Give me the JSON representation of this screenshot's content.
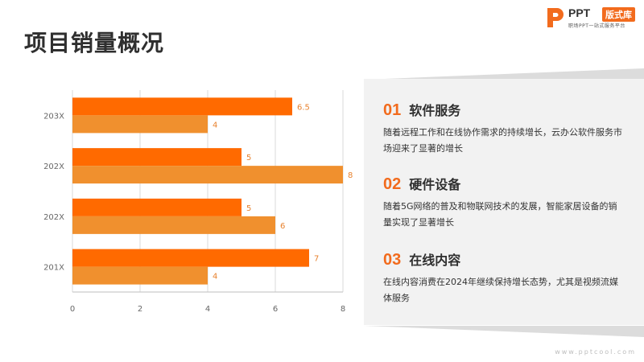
{
  "title": "项目销量概况",
  "logo": {
    "brand": "PPT",
    "badge": "版式库",
    "tagline": "职场PPT一站式服务平台"
  },
  "colors": {
    "accent": "#f26b1d",
    "series1": "#ff6a00",
    "series2": "#f0902e",
    "panel": "#f2f2f2"
  },
  "chart_data": {
    "type": "bar",
    "orientation": "horizontal",
    "categories": [
      "201X",
      "202X",
      "202X",
      "203X"
    ],
    "series": [
      {
        "values": [
          7,
          5,
          5,
          6.5
        ],
        "color": "#ff6a00"
      },
      {
        "values": [
          4,
          6,
          8,
          4
        ],
        "color": "#f0902e"
      }
    ],
    "xlim": [
      0,
      8
    ],
    "xticks": [
      "0",
      "2",
      "4",
      "6",
      "8"
    ],
    "grid": true
  },
  "items": [
    {
      "num": "01",
      "title": "软件服务",
      "desc": "随着远程工作和在线协作需求的持续增长，云办公软件服务市场迎来了显著的增长"
    },
    {
      "num": "02",
      "title": "硬件设备",
      "desc": "随着5G网络的普及和物联网技术的发展，智能家居设备的销量实现了显著增长"
    },
    {
      "num": "03",
      "title": "在线内容",
      "desc": "在线内容消费在2024年继续保持增长态势，尤其是视频流媒体服务"
    }
  ],
  "footer": "www.pptcool.com"
}
